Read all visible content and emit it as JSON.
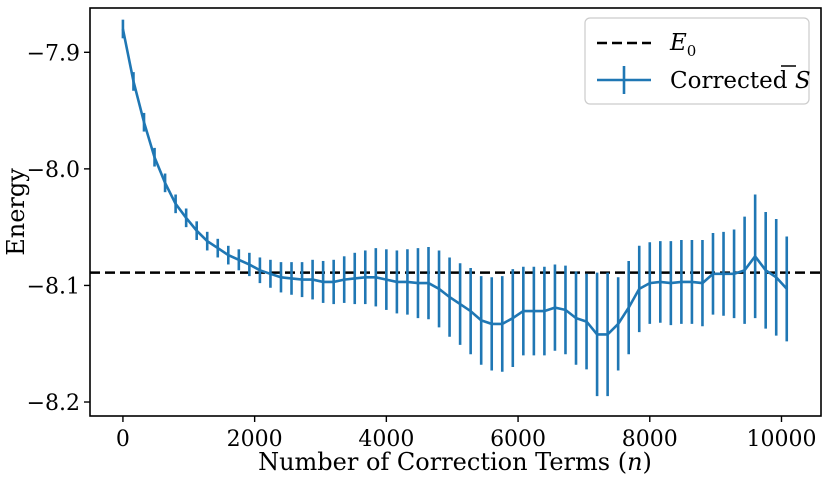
{
  "chart_data": {
    "type": "line",
    "title": "",
    "xlabel": "Number of Correction Terms (n)",
    "xlabel_parts": [
      "Number of Correction Terms (",
      "n",
      ")"
    ],
    "ylabel": "Energy",
    "xlim": [
      -500,
      10600
    ],
    "ylim": [
      -8.212,
      -7.862
    ],
    "xticks": [
      0,
      2000,
      4000,
      6000,
      8000,
      10000
    ],
    "xtick_labels": [
      "0",
      "2000",
      "4000",
      "6000",
      "8000",
      "10000"
    ],
    "yticks": [
      -7.9,
      -8.0,
      -8.1,
      -8.2
    ],
    "ytick_labels": [
      "−7.9",
      "−8.0",
      "−8.1",
      "−8.2"
    ],
    "grid": false,
    "legend_position": "top-right",
    "reference_line": {
      "name": "E0",
      "label_main": "E",
      "label_sub": "0",
      "value": -8.089,
      "style": "dashed",
      "color": "#000000"
    },
    "series": [
      {
        "name": "Corrected S̄",
        "label_text": "Corrected ",
        "label_symbol": "S",
        "color": "#1f77b4",
        "x": [
          0,
          160,
          320,
          480,
          640,
          800,
          960,
          1120,
          1280,
          1440,
          1600,
          1760,
          1920,
          2080,
          2240,
          2400,
          2560,
          2720,
          2880,
          3040,
          3200,
          3360,
          3520,
          3680,
          3840,
          4000,
          4160,
          4320,
          4480,
          4640,
          4800,
          4960,
          5120,
          5280,
          5440,
          5600,
          5760,
          5920,
          6080,
          6240,
          6400,
          6560,
          6720,
          6880,
          7040,
          7200,
          7360,
          7520,
          7680,
          7840,
          8000,
          8160,
          8320,
          8480,
          8640,
          8800,
          8960,
          9120,
          9280,
          9440,
          9600,
          9760,
          9920,
          10080
        ],
        "y": [
          -7.88,
          -7.925,
          -7.96,
          -7.99,
          -8.012,
          -8.03,
          -8.042,
          -8.053,
          -8.062,
          -8.068,
          -8.074,
          -8.078,
          -8.082,
          -8.087,
          -8.09,
          -8.093,
          -8.094,
          -8.095,
          -8.095,
          -8.097,
          -8.097,
          -8.095,
          -8.094,
          -8.093,
          -8.093,
          -8.095,
          -8.097,
          -8.097,
          -8.098,
          -8.098,
          -8.103,
          -8.11,
          -8.116,
          -8.122,
          -8.13,
          -8.133,
          -8.133,
          -8.128,
          -8.122,
          -8.122,
          -8.122,
          -8.119,
          -8.121,
          -8.128,
          -8.131,
          -8.142,
          -8.142,
          -8.133,
          -8.119,
          -8.103,
          -8.098,
          -8.097,
          -8.098,
          -8.097,
          -8.097,
          -8.098,
          -8.09,
          -8.09,
          -8.09,
          -8.087,
          -8.075,
          -8.087,
          -8.093,
          -8.103
        ],
        "err": [
          0.008,
          0.008,
          0.008,
          0.008,
          0.008,
          0.008,
          0.008,
          0.008,
          0.008,
          0.008,
          0.008,
          0.009,
          0.01,
          0.011,
          0.012,
          0.013,
          0.014,
          0.015,
          0.017,
          0.018,
          0.019,
          0.02,
          0.022,
          0.023,
          0.025,
          0.026,
          0.027,
          0.028,
          0.03,
          0.031,
          0.033,
          0.034,
          0.035,
          0.037,
          0.038,
          0.04,
          0.041,
          0.042,
          0.038,
          0.038,
          0.038,
          0.037,
          0.038,
          0.04,
          0.041,
          0.053,
          0.053,
          0.04,
          0.04,
          0.037,
          0.035,
          0.035,
          0.036,
          0.036,
          0.036,
          0.037,
          0.035,
          0.036,
          0.038,
          0.046,
          0.053,
          0.05,
          0.05,
          0.045
        ]
      }
    ]
  }
}
